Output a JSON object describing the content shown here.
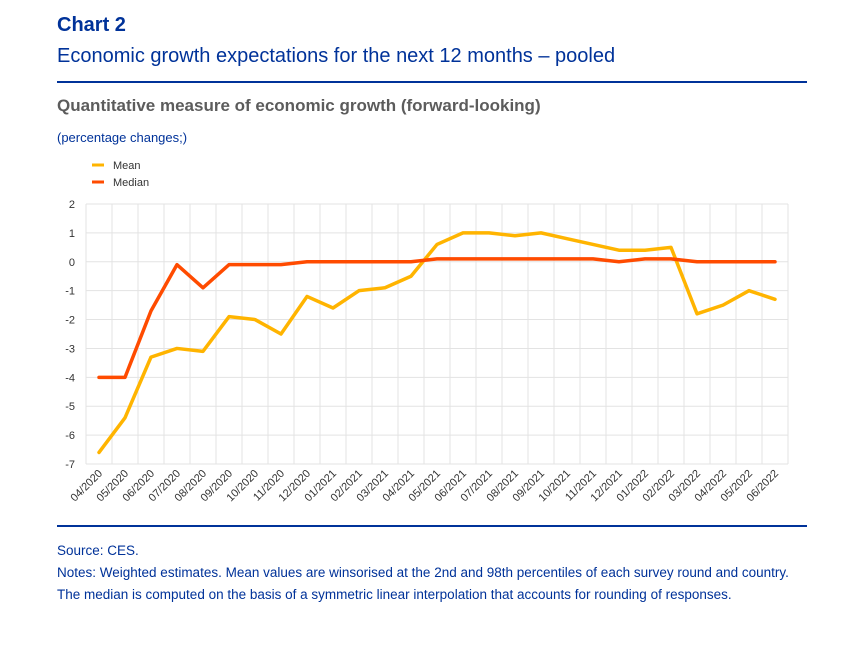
{
  "header": {
    "label": "Chart 2",
    "title": "Economic growth expectations for the next 12 months – pooled"
  },
  "subtitle": "Quantitative measure of economic growth (forward-looking)",
  "units": "(percentage changes;)",
  "footer": {
    "source": "Source: CES.",
    "notes": "Notes: Weighted estimates. Mean values are winsorised at the 2nd and 98th percentiles of each survey round and country. The median is computed on the basis of a symmetric linear interpolation that accounts for rounding of responses."
  },
  "chart_data": {
    "type": "line",
    "ylim": [
      -7,
      2
    ],
    "yticks": [
      "2",
      "1",
      "0",
      "-1",
      "-2",
      "-3",
      "-4",
      "-5",
      "-6",
      "-7"
    ],
    "grid": true,
    "legend_position": "top-left",
    "categories": [
      "04/2020",
      "05/2020",
      "06/2020",
      "07/2020",
      "08/2020",
      "09/2020",
      "10/2020",
      "11/2020",
      "12/2020",
      "01/2021",
      "02/2021",
      "03/2021",
      "04/2021",
      "05/2021",
      "06/2021",
      "07/2021",
      "08/2021",
      "09/2021",
      "10/2021",
      "11/2021",
      "12/2021",
      "01/2022",
      "02/2022",
      "03/2022",
      "04/2022",
      "05/2022",
      "06/2022"
    ],
    "series": [
      {
        "name": "Mean",
        "color": "#ffb400",
        "values": [
          -6.6,
          -5.4,
          -3.3,
          -3.0,
          -3.1,
          -1.9,
          -2.0,
          -2.5,
          -1.2,
          -1.6,
          -1.0,
          -0.9,
          -0.5,
          0.6,
          1.0,
          1.0,
          0.9,
          1.0,
          0.8,
          0.6,
          0.4,
          0.4,
          0.5,
          -1.8,
          -1.5,
          -1.0,
          -1.3
        ]
      },
      {
        "name": "Median",
        "color": "#ff4b00",
        "values": [
          -4,
          -4,
          -1.7,
          -0.1,
          -0.9,
          -0.1,
          -0.1,
          -0.1,
          0,
          0,
          0,
          0,
          0,
          0.1,
          0.1,
          0.1,
          0.1,
          0.1,
          0.1,
          0.1,
          0,
          0.1,
          0.1,
          0,
          0,
          0,
          0
        ]
      }
    ]
  }
}
